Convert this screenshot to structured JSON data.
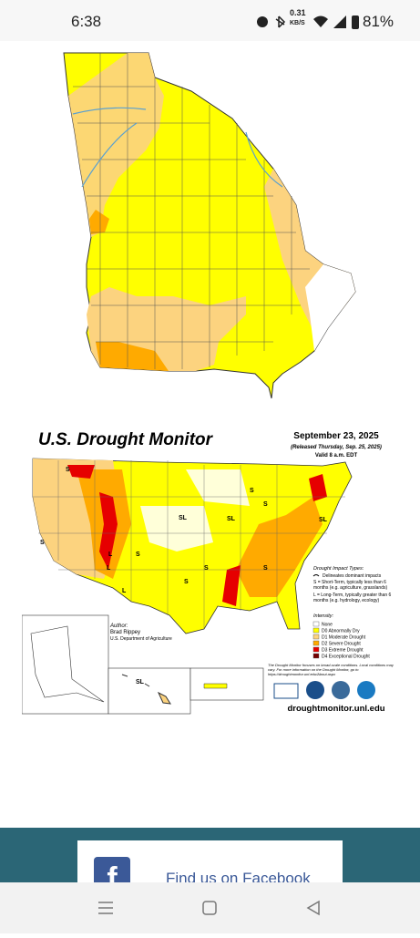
{
  "status_bar": {
    "time": "6:38",
    "net_speed": "0.31",
    "net_unit": "KB/S",
    "battery": "81%"
  },
  "drought_map": {
    "title": "U.S. Drought Monitor",
    "date": "September 23, 2025",
    "released": "(Released Thursday, Sep. 25, 2025)",
    "valid": "Valid 8 a.m. EDT",
    "impact_title": "Drought Impact Types:",
    "impact_line": "Delineates dominant impacts",
    "impact_s": "S = Short-Term, typically less than 6 months (e.g. agriculture, grasslands)",
    "impact_l": "L = Long-Term, typically greater than 6 months (e.g. hydrology, ecology)",
    "intensity_title": "Intensity:",
    "intensity": [
      "None",
      "D0 Abnormally Dry",
      "D1 Moderate Drought",
      "D2 Severe Drought",
      "D3 Extreme Drought",
      "D4 Exceptional Drought"
    ],
    "author_title": "Author:",
    "author": "Brad Rippey",
    "agency": "U.S. Department of Agriculture",
    "note": "The Drought Monitor focuses on broad-scale conditions. Local conditions may vary. For more information on the Drought Monitor, go to https://droughtmonitor.unl.edu/About.aspx",
    "url": "droughtmonitor.unl.edu",
    "map_labels": [
      "S",
      "L",
      "SL",
      "S",
      "SL",
      "S",
      "S",
      "SL",
      "L",
      "S",
      "S",
      "L",
      "S",
      "S",
      "SL"
    ]
  },
  "footer": {
    "facebook": "Find us on Facebook"
  }
}
